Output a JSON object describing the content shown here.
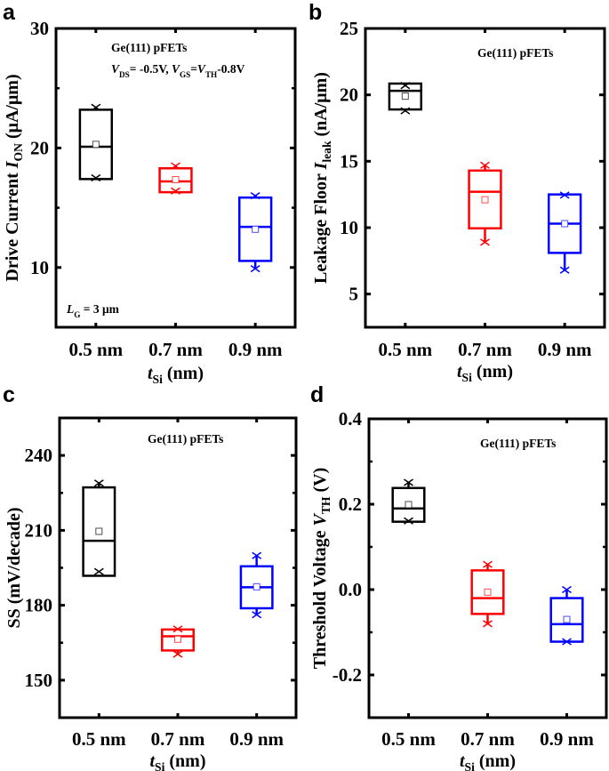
{
  "chart_data": [
    {
      "panel": "a",
      "type": "box",
      "categories": [
        "0.5 nm",
        "0.7 nm",
        "0.9 nm"
      ],
      "x": [
        0.5,
        0.7,
        0.9
      ],
      "xlim": [
        0.4,
        1.0
      ],
      "ylim": [
        5,
        30
      ],
      "yticks": [
        10,
        20,
        30
      ],
      "ytick_labels": [
        "10",
        "20",
        "30"
      ],
      "yminor": [
        15,
        25
      ],
      "xlabel": [
        {
          "t": "t",
          "i": 1
        },
        {
          "t": "Si",
          "sub": 1
        },
        {
          "t": " (nm)"
        }
      ],
      "ylabel": [
        {
          "t": "Drive Current "
        },
        {
          "t": "I",
          "i": 1
        },
        {
          "t": "ON",
          "sub": 1
        },
        {
          "t": " (μA/μm)"
        }
      ],
      "annotations": [
        [
          {
            "t": "Ge(111) pFETs"
          }
        ],
        [
          {
            "t": "V",
            "i": 1
          },
          {
            "t": "DS",
            "sub": 1
          },
          {
            "t": "= -0.5V, "
          },
          {
            "t": "V",
            "i": 1
          },
          {
            "t": "GS",
            "sub": 1
          },
          {
            "t": "="
          },
          {
            "t": "V",
            "i": 1
          },
          {
            "t": "TH",
            "sub": 1
          },
          {
            "t": "-0.8V"
          }
        ],
        [
          {
            "t": "L",
            "i": 1
          },
          {
            "t": "G",
            "sub": 1
          },
          {
            "t": " = 3 μm"
          }
        ]
      ],
      "series": [
        {
          "color": "#000000",
          "q1": 17.4,
          "q3": 23.2,
          "median": 20.1,
          "mean": 20.3,
          "points": [
            23.4,
            17.5
          ]
        },
        {
          "color": "#ff0000",
          "q1": 16.3,
          "q3": 18.3,
          "median": 17.2,
          "mean": 17.35,
          "points": [
            18.5,
            16.4
          ]
        },
        {
          "color": "#0000ff",
          "q1": 10.55,
          "q3": 15.85,
          "median": 13.4,
          "mean": 13.2,
          "points": [
            16.0,
            9.9
          ]
        }
      ]
    },
    {
      "panel": "b",
      "type": "box",
      "categories": [
        "0.5 nm",
        "0.7 nm",
        "0.9 nm"
      ],
      "x": [
        0.5,
        0.7,
        0.9
      ],
      "xlim": [
        0.4,
        1.0
      ],
      "ylim": [
        2.5,
        25
      ],
      "yticks": [
        5,
        10,
        15,
        20,
        25
      ],
      "ytick_labels": [
        "5",
        "10",
        "15",
        "20",
        "25"
      ],
      "yminor": [],
      "xlabel": [
        {
          "t": "t",
          "i": 1
        },
        {
          "t": "Si",
          "sub": 1
        },
        {
          "t": " (nm)"
        }
      ],
      "ylabel": [
        {
          "t": "Leakage Floor "
        },
        {
          "t": "I",
          "i": 1
        },
        {
          "t": "leak",
          "sub": 1
        },
        {
          "t": " (nA/μm)"
        }
      ],
      "annotations": [
        [
          {
            "t": "Ge(111) pFETs"
          }
        ]
      ],
      "series": [
        {
          "color": "#000000",
          "q1": 18.9,
          "q3": 20.85,
          "median": 20.3,
          "mean": 19.9,
          "points": [
            20.7,
            18.8
          ]
        },
        {
          "color": "#ff0000",
          "q1": 9.95,
          "q3": 14.3,
          "median": 12.7,
          "mean": 12.1,
          "points": [
            14.7,
            8.9
          ]
        },
        {
          "color": "#0000ff",
          "q1": 8.1,
          "q3": 12.5,
          "median": 10.3,
          "mean": 10.3,
          "points": [
            12.45,
            6.8
          ]
        }
      ]
    },
    {
      "panel": "c",
      "type": "box",
      "categories": [
        "0.5 nm",
        "0.7 nm",
        "0.9 nm"
      ],
      "x": [
        0.5,
        0.7,
        0.9
      ],
      "xlim": [
        0.4,
        1.0
      ],
      "ylim": [
        135,
        255
      ],
      "yticks": [
        150,
        180,
        210,
        240
      ],
      "ytick_labels": [
        "150",
        "180",
        "210",
        "240"
      ],
      "yminor": [
        165,
        195,
        225
      ],
      "xlabel": [
        {
          "t": "t",
          "i": 1
        },
        {
          "t": "Si",
          "sub": 1
        },
        {
          "t": " (nm)"
        }
      ],
      "ylabel": [
        {
          "t": "SS (mV/decade)"
        }
      ],
      "annotations": [
        [
          {
            "t": "Ge(111) pFETs"
          }
        ]
      ],
      "series": [
        {
          "color": "#000000",
          "q1": 191.8,
          "q3": 227.2,
          "median": 205.8,
          "mean": 209.6,
          "points": [
            228.9,
            193.5
          ]
        },
        {
          "color": "#ff0000",
          "q1": 161.9,
          "q3": 170.3,
          "median": 167.6,
          "mean": 166.4,
          "points": [
            170.5,
            160.4
          ]
        },
        {
          "color": "#0000ff",
          "q1": 178.8,
          "q3": 195.6,
          "median": 187.2,
          "mean": 187.4,
          "points": [
            199.9,
            176.2
          ]
        }
      ]
    },
    {
      "panel": "d",
      "type": "box",
      "categories": [
        "0.5 nm",
        "0.7 nm",
        "0.9 nm"
      ],
      "x": [
        0.5,
        0.7,
        0.9
      ],
      "xlim": [
        0.4,
        1.0
      ],
      "ylim": [
        -0.3,
        0.4
      ],
      "yticks": [
        -0.2,
        0.0,
        0.2,
        0.4
      ],
      "ytick_labels": [
        "-0.2",
        "0.0",
        "0.2",
        "0.4"
      ],
      "yminor": [
        -0.1,
        0.1,
        0.3
      ],
      "xlabel": [
        {
          "t": "t",
          "i": 1
        },
        {
          "t": "Si",
          "sub": 1
        },
        {
          "t": " (nm)"
        }
      ],
      "ylabel": [
        {
          "t": "Threshold Voltage "
        },
        {
          "t": "V",
          "i": 1
        },
        {
          "t": "TH",
          "sub": 1
        },
        {
          "t": " (V)"
        }
      ],
      "annotations": [
        [
          {
            "t": "Ge(111) pFETs"
          }
        ]
      ],
      "series": [
        {
          "color": "#000000",
          "q1": 0.159,
          "q3": 0.238,
          "median": 0.19,
          "mean": 0.199,
          "points": [
            0.251,
            0.161
          ]
        },
        {
          "color": "#ff0000",
          "q1": -0.057,
          "q3": 0.045,
          "median": -0.02,
          "mean": -0.006,
          "points": [
            0.059,
            -0.08
          ]
        },
        {
          "color": "#0000ff",
          "q1": -0.122,
          "q3": -0.02,
          "median": -0.081,
          "mean": -0.07,
          "points": [
            0.0,
            -0.122
          ]
        }
      ]
    }
  ]
}
